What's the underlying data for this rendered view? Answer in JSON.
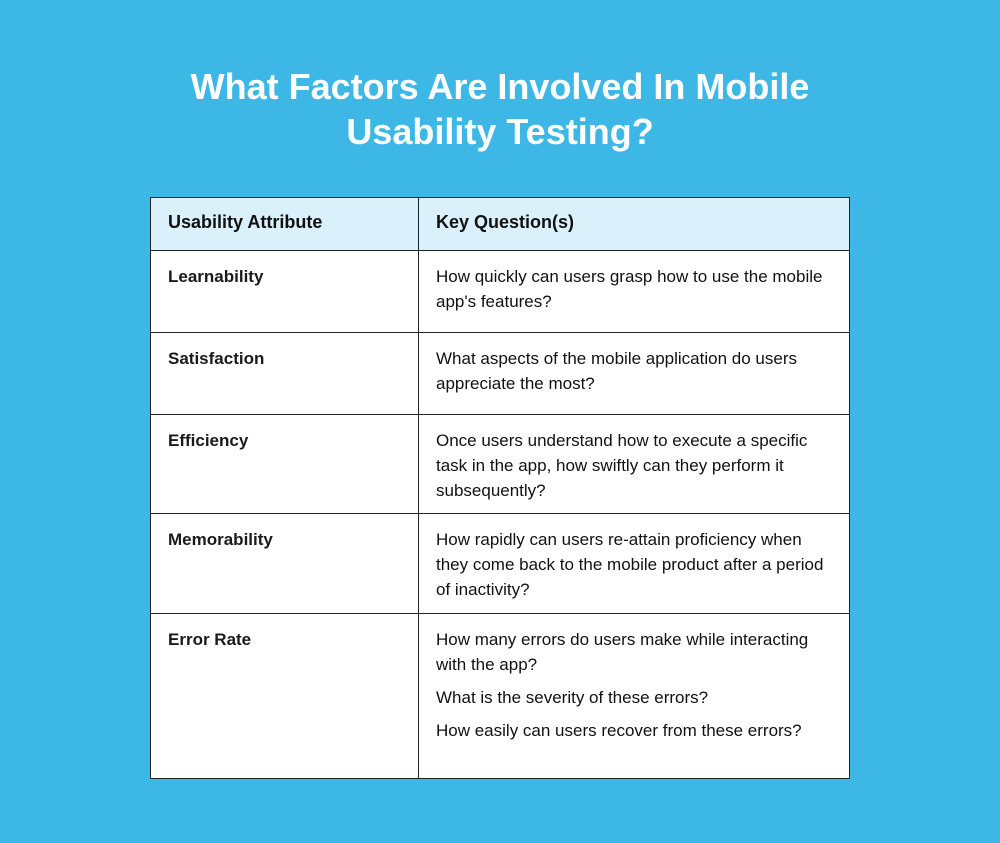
{
  "title": {
    "line1": "What Factors Are Involved In Mobile",
    "line2": "Usability Testing?"
  },
  "table": {
    "headers": [
      "Usability Attribute",
      "Key Question(s)"
    ],
    "rows": [
      {
        "attribute": "Learnability",
        "questions": [
          "How quickly can users grasp how to use the mobile app's features?"
        ]
      },
      {
        "attribute": "Satisfaction",
        "questions": [
          "What aspects of the mobile application do users appreciate the most?"
        ]
      },
      {
        "attribute": "Efficiency",
        "questions": [
          "Once users understand how to execute a specific task in the app, how swiftly can they perform it subsequently?"
        ]
      },
      {
        "attribute": "Memorability",
        "questions": [
          "How rapidly can users re-attain proficiency when they come back to the mobile product after a period of inactivity?"
        ]
      },
      {
        "attribute": "Error Rate",
        "questions": [
          "How many errors do users make while interacting with the app?",
          "What is the severity of these errors?",
          "How easily can users recover from these errors?"
        ]
      }
    ]
  },
  "colors": {
    "background": "#3db8e6",
    "header": "#daf0fa"
  }
}
